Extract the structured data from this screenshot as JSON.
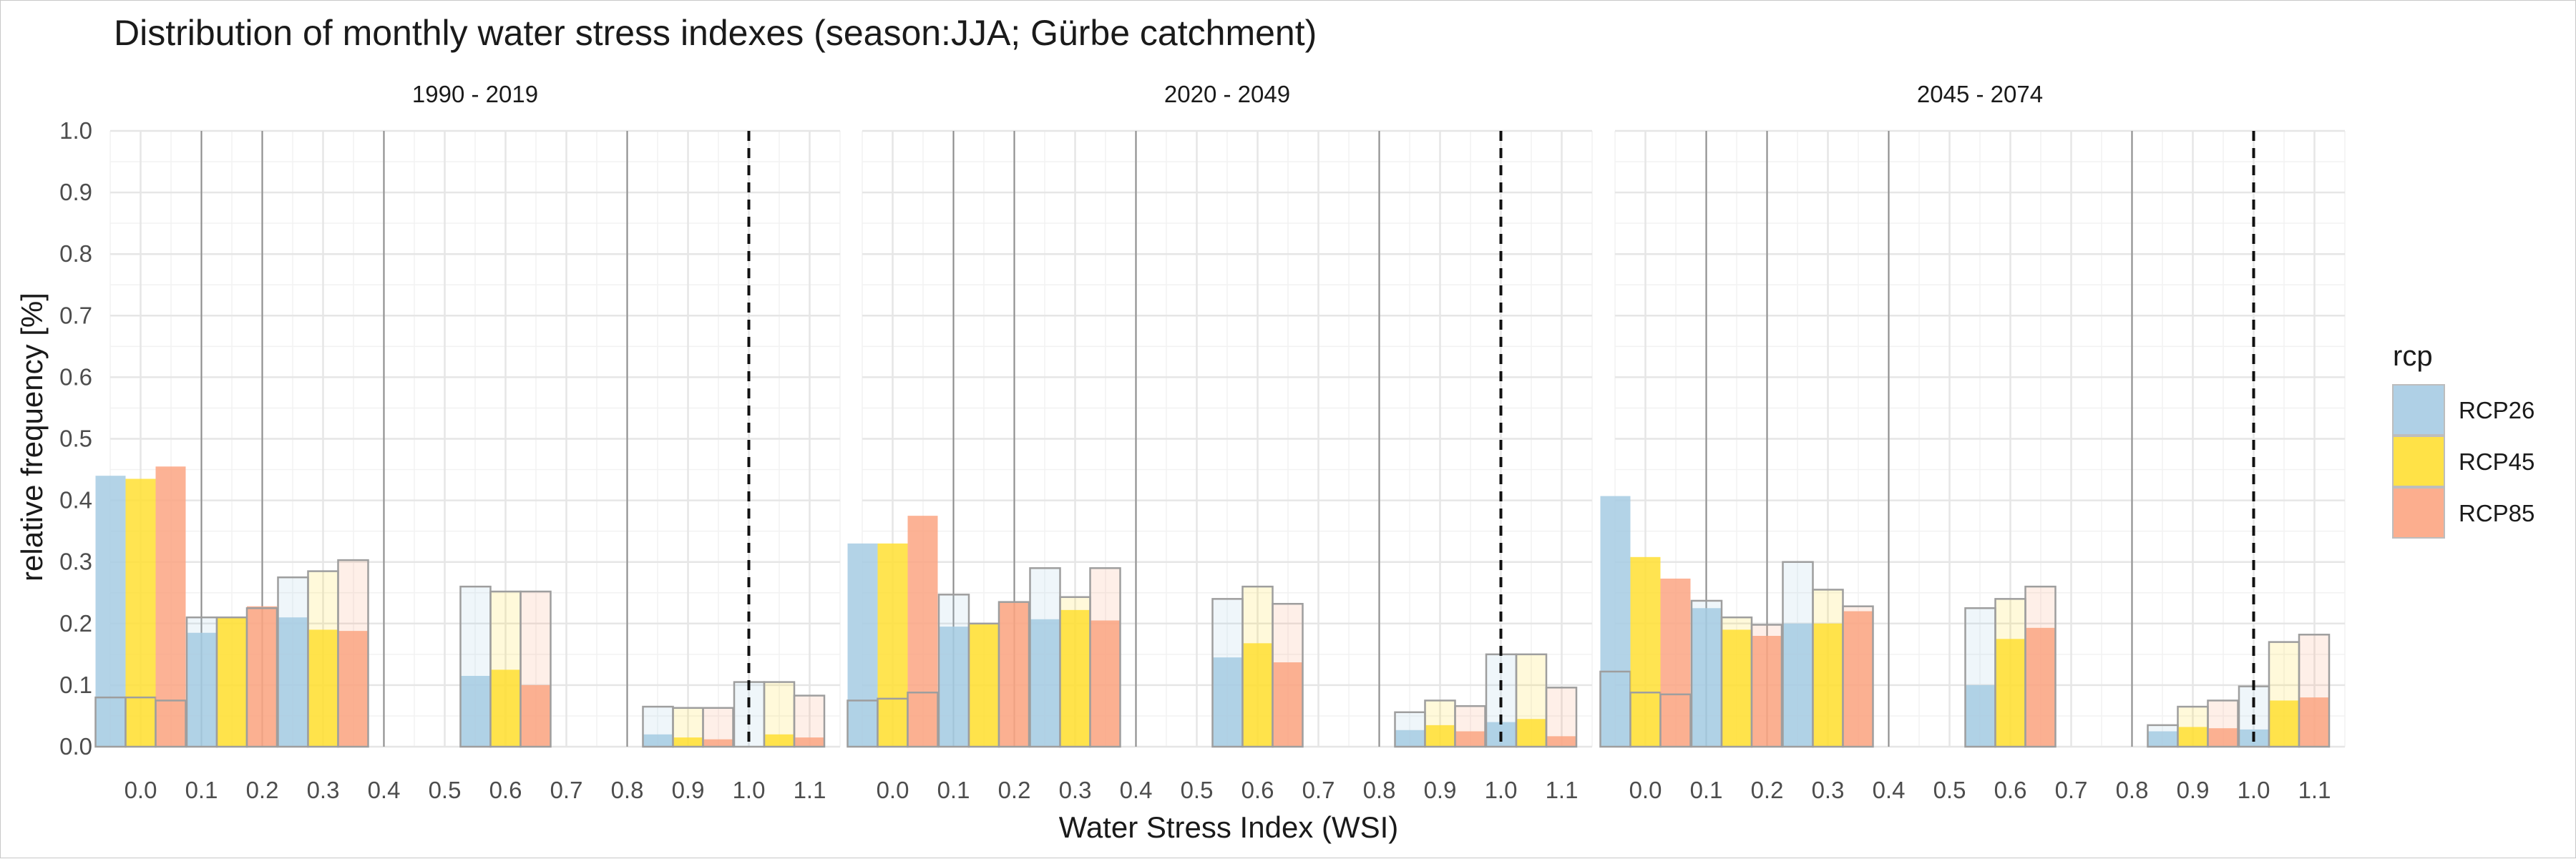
{
  "chart_data": {
    "type": "bar",
    "title": "Distribution of monthly water stress indexes (season:JJA; Gürbe catchment)",
    "xlabel": "Water Stress Index (WSI)",
    "ylabel": "relative frequency [%]",
    "ylim": [
      0,
      1.0
    ],
    "xlim": [
      -0.05,
      1.15
    ],
    "y_ticks": [
      "0.0",
      "0.1",
      "0.2",
      "0.3",
      "0.4",
      "0.5",
      "0.6",
      "0.7",
      "0.8",
      "0.9",
      "1.0"
    ],
    "x_ticks": [
      "0.0",
      "0.1",
      "0.2",
      "0.3",
      "0.4",
      "0.5",
      "0.6",
      "0.7",
      "0.8",
      "0.9",
      "1.0",
      "1.1"
    ],
    "grid": true,
    "threshold_line": 1.0,
    "group_centers": [
      0.0,
      0.15,
      0.3,
      0.6,
      0.9,
      1.05
    ],
    "region_boundaries": [
      0.1,
      0.2,
      0.4,
      0.8
    ],
    "legend": {
      "title": "rcp",
      "position": "right",
      "entries": [
        "RCP26",
        "RCP45",
        "RCP85"
      ]
    },
    "series_colors": {
      "RCP26": "#a6cbe3",
      "RCP45": "#ffdf33",
      "RCP85": "#fca582"
    },
    "panels": [
      {
        "label": "1990 - 2019",
        "series": [
          {
            "name": "RCP26",
            "solid": [
              0.44,
              0.185,
              0.21,
              0.115,
              0.02,
              0.0
            ],
            "outline": [
              0.08,
              0.21,
              0.275,
              0.26,
              0.065,
              0.105
            ]
          },
          {
            "name": "RCP45",
            "solid": [
              0.435,
              0.21,
              0.19,
              0.125,
              0.015,
              0.02
            ],
            "outline": [
              0.08,
              0.21,
              0.285,
              0.252,
              0.063,
              0.105
            ]
          },
          {
            "name": "RCP85",
            "solid": [
              0.455,
              0.228,
              0.188,
              0.1,
              0.012,
              0.015
            ],
            "outline": [
              0.075,
              0.225,
              0.303,
              0.252,
              0.063,
              0.083
            ]
          }
        ]
      },
      {
        "label": "2020 - 2049",
        "series": [
          {
            "name": "RCP26",
            "solid": [
              0.33,
              0.195,
              0.207,
              0.145,
              0.027,
              0.04
            ],
            "outline": [
              0.075,
              0.247,
              0.29,
              0.24,
              0.056,
              0.15
            ]
          },
          {
            "name": "RCP45",
            "solid": [
              0.33,
              0.2,
              0.222,
              0.168,
              0.035,
              0.045
            ],
            "outline": [
              0.078,
              0.2,
              0.243,
              0.26,
              0.075,
              0.15
            ]
          },
          {
            "name": "RCP85",
            "solid": [
              0.375,
              0.235,
              0.205,
              0.137,
              0.025,
              0.017
            ],
            "outline": [
              0.088,
              0.235,
              0.29,
              0.232,
              0.066,
              0.096
            ]
          }
        ]
      },
      {
        "label": "2045 - 2074",
        "series": [
          {
            "name": "RCP26",
            "solid": [
              0.407,
              0.225,
              0.2,
              0.1,
              0.025,
              0.028
            ],
            "outline": [
              0.122,
              0.237,
              0.3,
              0.225,
              0.035,
              0.098
            ]
          },
          {
            "name": "RCP45",
            "solid": [
              0.308,
              0.19,
              0.2,
              0.175,
              0.032,
              0.075
            ],
            "outline": [
              0.088,
              0.21,
              0.255,
              0.24,
              0.065,
              0.17
            ]
          },
          {
            "name": "RCP85",
            "solid": [
              0.273,
              0.18,
              0.22,
              0.193,
              0.03,
              0.08
            ],
            "outline": [
              0.085,
              0.198,
              0.228,
              0.26,
              0.075,
              0.182
            ]
          }
        ]
      }
    ]
  }
}
